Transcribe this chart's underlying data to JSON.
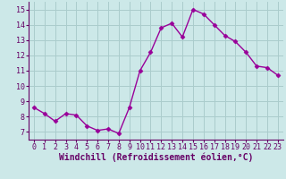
{
  "x": [
    0,
    1,
    2,
    3,
    4,
    5,
    6,
    7,
    8,
    9,
    10,
    11,
    12,
    13,
    14,
    15,
    16,
    17,
    18,
    19,
    20,
    21,
    22,
    23
  ],
  "y": [
    8.6,
    8.2,
    7.7,
    8.2,
    8.1,
    7.4,
    7.1,
    7.2,
    6.9,
    8.6,
    11.0,
    12.2,
    13.8,
    14.1,
    13.2,
    15.0,
    14.7,
    14.0,
    13.3,
    12.9,
    12.2,
    11.3,
    11.2,
    10.7
  ],
  "line_color": "#990099",
  "marker": "D",
  "markersize": 2.5,
  "linewidth": 1.0,
  "bg_color": "#cce8e8",
  "grid_color": "#aacccc",
  "xlabel": "Windchill (Refroidissement éolien,°C)",
  "xlabel_fontsize": 7,
  "tick_fontsize": 6,
  "xlim": [
    -0.5,
    23.5
  ],
  "ylim": [
    6.5,
    15.5
  ],
  "yticks": [
    7,
    8,
    9,
    10,
    11,
    12,
    13,
    14,
    15
  ],
  "xticks": [
    0,
    1,
    2,
    3,
    4,
    5,
    6,
    7,
    8,
    9,
    10,
    11,
    12,
    13,
    14,
    15,
    16,
    17,
    18,
    19,
    20,
    21,
    22,
    23
  ]
}
